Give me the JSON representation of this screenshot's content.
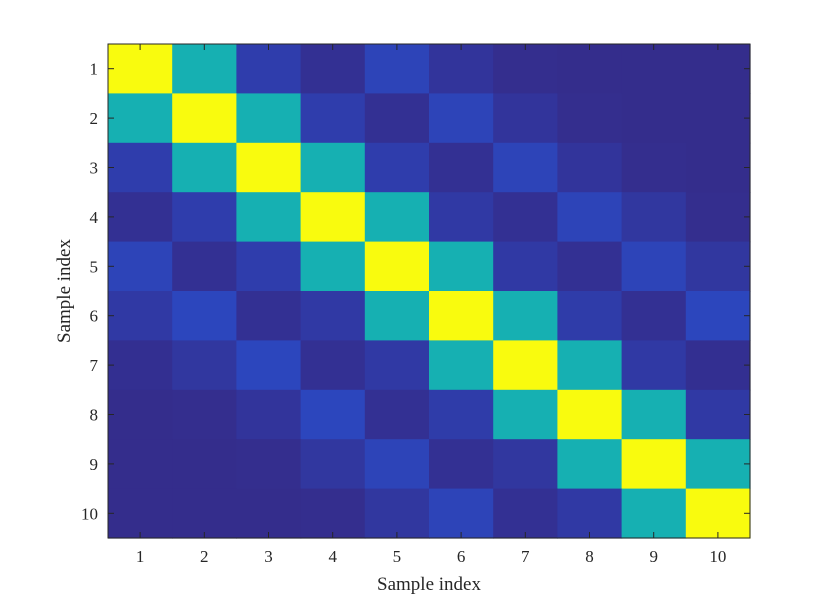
{
  "chart_data": {
    "type": "heatmap",
    "title": "",
    "xlabel": "Sample index",
    "ylabel": "Sample index",
    "x_categories": [
      "1",
      "2",
      "3",
      "4",
      "5",
      "6",
      "7",
      "8",
      "9",
      "10"
    ],
    "y_categories": [
      "1",
      "2",
      "3",
      "4",
      "5",
      "6",
      "7",
      "8",
      "9",
      "10"
    ],
    "colormap": "parula",
    "clim": [
      0,
      1
    ],
    "grid": false,
    "legend": "none",
    "values": [
      [
        1.0,
        0.6,
        0.15,
        0.05,
        0.2,
        0.08,
        0.03,
        0.02,
        0.02,
        0.02
      ],
      [
        0.6,
        1.0,
        0.6,
        0.15,
        0.05,
        0.2,
        0.08,
        0.03,
        0.02,
        0.02
      ],
      [
        0.15,
        0.6,
        1.0,
        0.6,
        0.15,
        0.05,
        0.2,
        0.08,
        0.03,
        0.02
      ],
      [
        0.05,
        0.15,
        0.6,
        1.0,
        0.6,
        0.12,
        0.05,
        0.2,
        0.1,
        0.03
      ],
      [
        0.2,
        0.05,
        0.15,
        0.6,
        1.0,
        0.6,
        0.12,
        0.05,
        0.2,
        0.1
      ],
      [
        0.12,
        0.22,
        0.05,
        0.12,
        0.6,
        1.0,
        0.6,
        0.14,
        0.05,
        0.22
      ],
      [
        0.04,
        0.1,
        0.22,
        0.05,
        0.12,
        0.6,
        1.0,
        0.6,
        0.12,
        0.04
      ],
      [
        0.02,
        0.03,
        0.08,
        0.22,
        0.05,
        0.14,
        0.6,
        1.0,
        0.6,
        0.12
      ],
      [
        0.02,
        0.02,
        0.03,
        0.1,
        0.2,
        0.05,
        0.1,
        0.6,
        1.0,
        0.6
      ],
      [
        0.02,
        0.02,
        0.02,
        0.03,
        0.1,
        0.2,
        0.05,
        0.12,
        0.6,
        1.0
      ]
    ]
  }
}
